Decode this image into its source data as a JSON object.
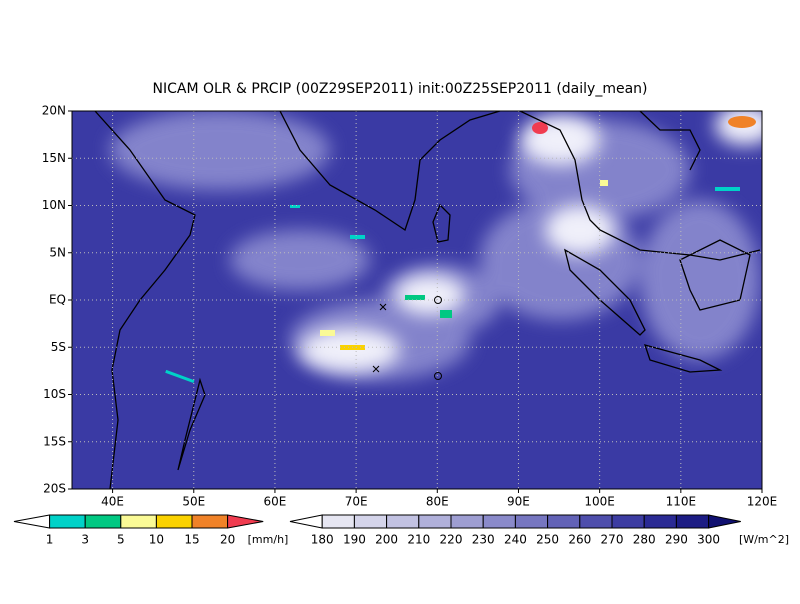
{
  "title": "NICAM OLR & PRCIP (00Z29SEP2011) init:00Z25SEP2011 (daily_mean)",
  "lat_labels": [
    "20N",
    "15N",
    "10N",
    "5N",
    "EQ",
    "5S",
    "10S",
    "15S",
    "20S"
  ],
  "lon_labels": [
    "40E",
    "50E",
    "60E",
    "70E",
    "80E",
    "90E",
    "100E",
    "110E",
    "120E"
  ],
  "precip_colorbar": {
    "labels": [
      "1",
      "3",
      "5",
      "10",
      "15",
      "20"
    ],
    "unit": "[mm/h]",
    "colors": [
      "#ffffff",
      "#00d2c8",
      "#00c882",
      "#fafa96",
      "#fad200",
      "#f08228",
      "#f03c50"
    ]
  },
  "olr_colorbar": {
    "labels": [
      "180",
      "190",
      "200",
      "210",
      "220",
      "230",
      "240",
      "250",
      "260",
      "270",
      "280",
      "290",
      "300"
    ],
    "unit": "[W/m^2]",
    "colors": [
      "#ffffff",
      "#e6e6f2",
      "#d4d4ea",
      "#c2c2e2",
      "#b0b0da",
      "#9e9ed2",
      "#8a8aca",
      "#7676c0",
      "#6262b6",
      "#4e4eac",
      "#3c3ca2",
      "#2a2a94",
      "#1c1c84",
      "#101070"
    ]
  }
}
